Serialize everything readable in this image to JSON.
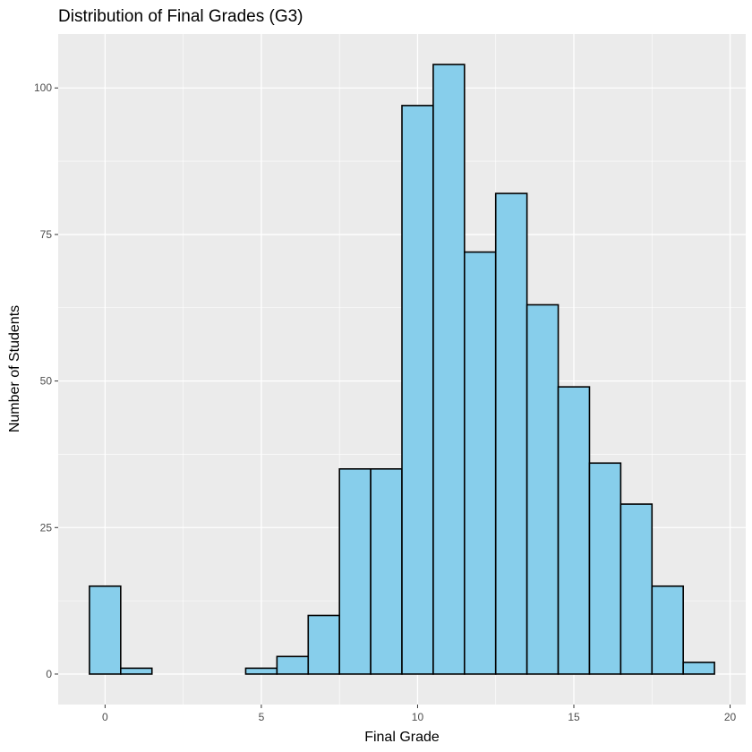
{
  "chart_data": {
    "type": "bar",
    "title": "Distribution of Final Grades (G3)",
    "xlabel": "Final Grade",
    "ylabel": "Number of Students",
    "bin_width": 1,
    "x": [
      0,
      1,
      2,
      3,
      4,
      5,
      6,
      7,
      8,
      9,
      10,
      11,
      12,
      13,
      14,
      15,
      16,
      17,
      18,
      19
    ],
    "values": [
      15,
      1,
      0,
      0,
      0,
      1,
      3,
      10,
      35,
      35,
      97,
      104,
      72,
      82,
      63,
      49,
      36,
      29,
      15,
      2
    ],
    "xlim": [
      -1.5,
      20.5
    ],
    "ylim": [
      -5.2,
      109.2
    ],
    "x_ticks": [
      0,
      5,
      10,
      15,
      20
    ],
    "y_ticks": [
      0,
      25,
      50,
      75,
      100
    ],
    "x_tick_labels": [
      "0",
      "5",
      "10",
      "15",
      "20"
    ],
    "y_tick_labels": [
      "0",
      "25",
      "50",
      "75",
      "100"
    ],
    "grid": true,
    "bar_fill": "#87ceeb",
    "bar_outline": "#000000",
    "panel_background": "#ebebeb",
    "grid_color": "#ffffff"
  }
}
